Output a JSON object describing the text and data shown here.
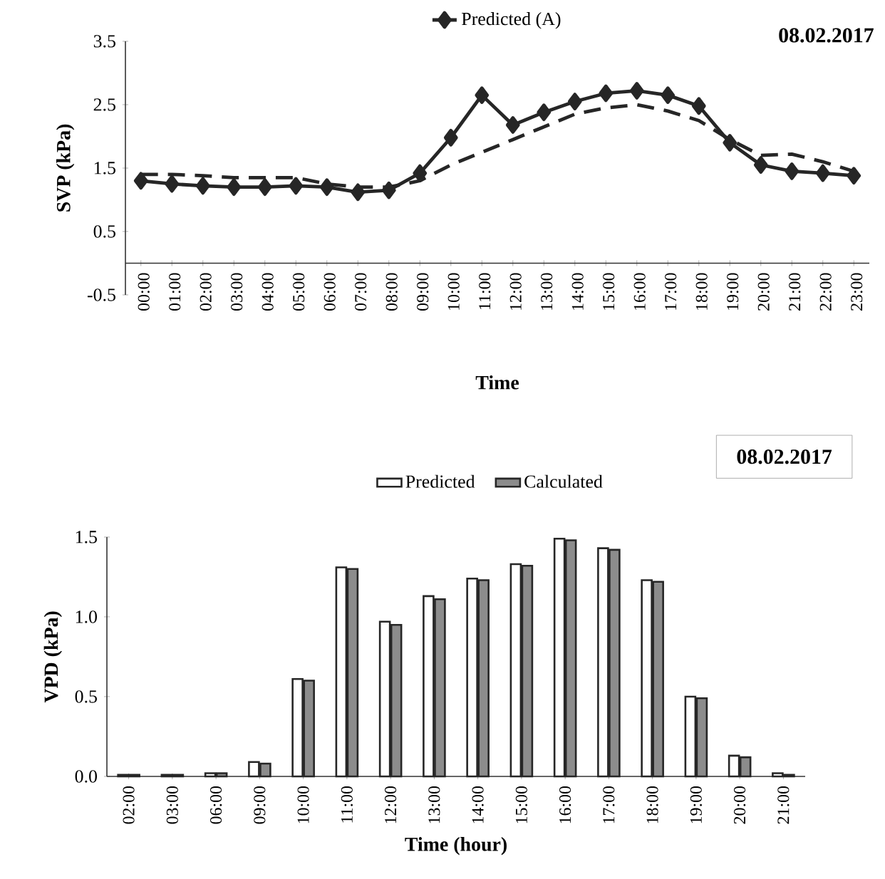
{
  "chart_data": [
    {
      "type": "line",
      "title": "08.02.2017",
      "xlabel": "Time",
      "ylabel": "SVP (kPa)",
      "categories": [
        "00:00",
        "01:00",
        "02:00",
        "03:00",
        "04:00",
        "05:00",
        "06:00",
        "07:00",
        "08:00",
        "09:00",
        "10:00",
        "11:00",
        "12:00",
        "13:00",
        "14:00",
        "15:00",
        "16:00",
        "17:00",
        "18:00",
        "19:00",
        "20:00",
        "21:00",
        "22:00",
        "23:00"
      ],
      "series": [
        {
          "name": "Predicted (A)",
          "color": "#262626",
          "marker": "diamond",
          "line_style": "solid",
          "values": [
            1.3,
            1.25,
            1.22,
            1.2,
            1.2,
            1.22,
            1.2,
            1.12,
            1.15,
            1.42,
            1.98,
            2.65,
            2.18,
            2.38,
            2.55,
            2.68,
            2.72,
            2.65,
            2.48,
            1.9,
            1.55,
            1.45,
            1.42,
            1.38
          ]
        },
        {
          "color": "#262626",
          "marker": "none",
          "line_style": "dashed",
          "values": [
            1.4,
            1.4,
            1.38,
            1.35,
            1.35,
            1.35,
            1.25,
            1.2,
            1.2,
            1.3,
            1.55,
            1.75,
            1.95,
            2.15,
            2.35,
            2.45,
            2.5,
            2.4,
            2.25,
            1.95,
            1.7,
            1.72,
            1.6,
            1.45
          ]
        }
      ],
      "ylim": [
        -0.5,
        3.5
      ],
      "yticks": [
        -0.5,
        0.5,
        1.5,
        2.5,
        3.5
      ],
      "grid": false,
      "legend": "top"
    },
    {
      "type": "bar",
      "title": "08.02.2017",
      "xlabel": "Time (hour)",
      "ylabel": "VPD (kPa)",
      "categories": [
        "02:00",
        "03:00",
        "06:00",
        "09:00",
        "10:00",
        "11:00",
        "12:00",
        "13:00",
        "14:00",
        "15:00",
        "16:00",
        "17:00",
        "18:00",
        "19:00",
        "20:00",
        "21:00"
      ],
      "series": [
        {
          "name": "Predicted",
          "color": "#ffffff",
          "values": [
            0.01,
            0.01,
            0.02,
            0.09,
            0.61,
            1.31,
            0.97,
            1.13,
            1.24,
            1.33,
            1.49,
            1.43,
            1.23,
            0.5,
            0.13,
            0.02
          ]
        },
        {
          "name": "Calculated",
          "color": "#8c8c8c",
          "values": [
            0.01,
            0.01,
            0.02,
            0.08,
            0.6,
            1.3,
            0.95,
            1.11,
            1.23,
            1.32,
            1.48,
            1.42,
            1.22,
            0.49,
            0.12,
            0.01
          ]
        }
      ],
      "ylim": [
        0,
        1.5
      ],
      "yticks": [
        {
          "value": 0,
          "label": "0.0"
        },
        0.5,
        {
          "value": 1,
          "label": "1.0"
        },
        1.5
      ],
      "grid": false,
      "legend": "top"
    }
  ]
}
